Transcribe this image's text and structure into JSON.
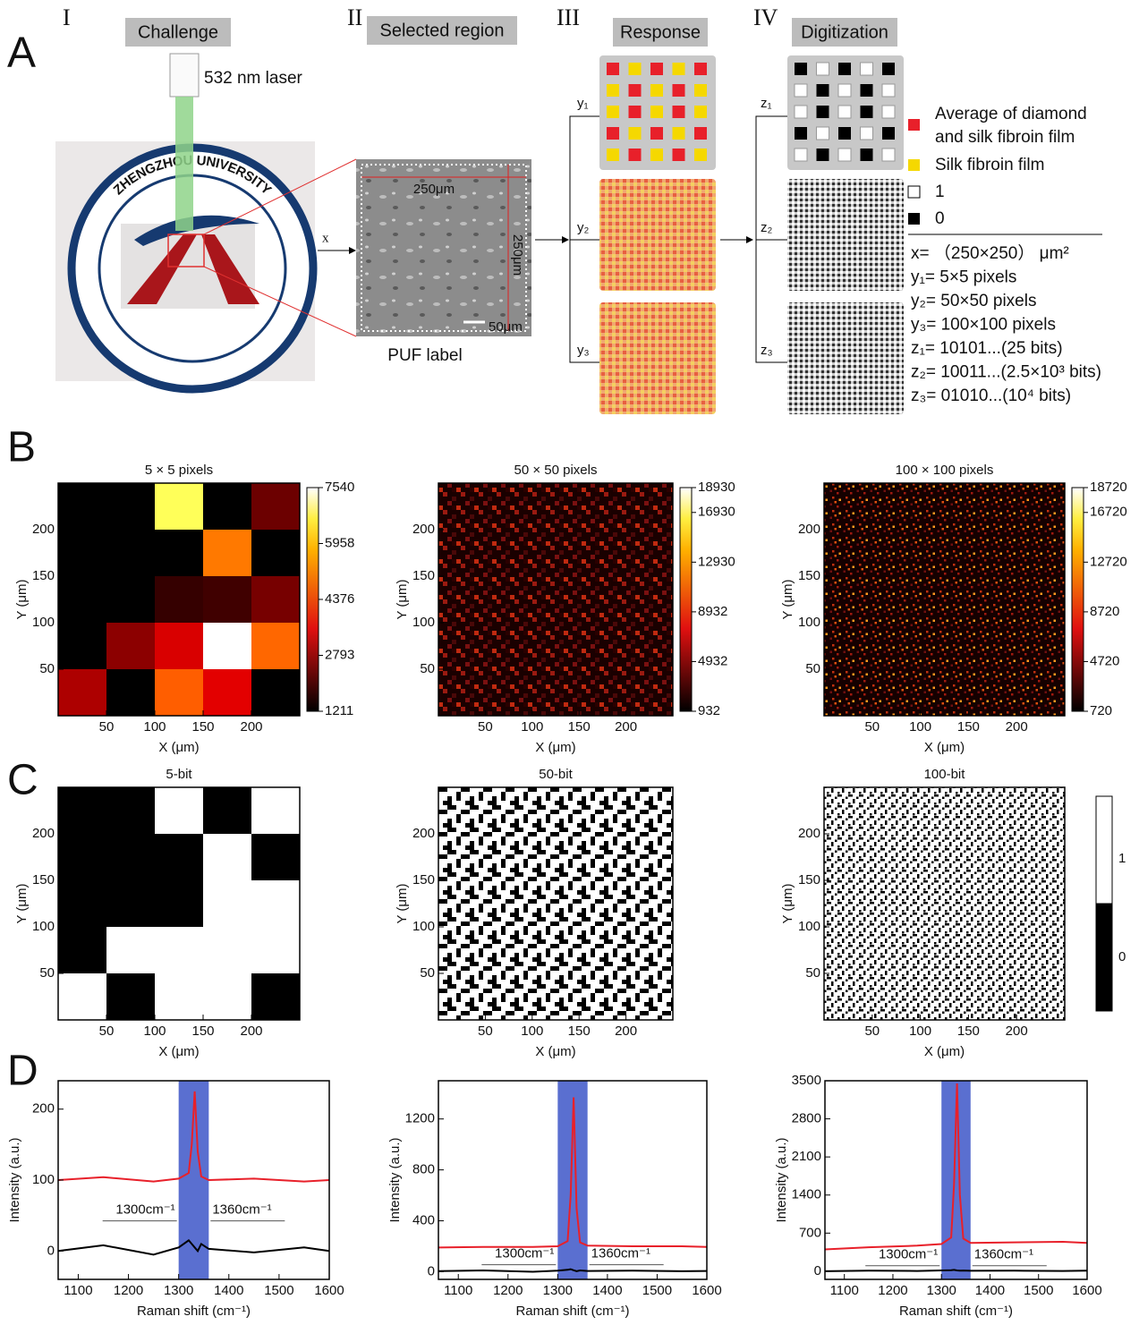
{
  "figure": {
    "panel_labels": [
      "A",
      "B",
      "C",
      "D"
    ],
    "panel_a": {
      "steps": [
        "I",
        "II",
        "III",
        "IV"
      ],
      "step_titles": [
        "Challenge",
        "Selected region",
        "Response",
        "Digitization"
      ],
      "laser": "532 nm laser",
      "logo_text": "ZHENGZHOU UNIVERSITY",
      "sem_width": "250μm",
      "sem_height": "250μm",
      "scale_bar": "50μm",
      "sem_caption": "PUF label",
      "input": "x",
      "responses": [
        "y₁",
        "y₂",
        "y₃"
      ],
      "digits": [
        "z₁",
        "z₂",
        "z₃"
      ],
      "legend": [
        "Average of diamond",
        "and silk fibroin film",
        "Silk fibroin film",
        "1",
        "0"
      ],
      "definitions": [
        "x= （250×250） μm²",
        "y₁= 5×5 pixels",
        "y₂= 50×50 pixels",
        "y₃= 100×100 pixels",
        "z₁= 10101...(25 bits)",
        "z₂= 10011...(2.5×10³ bits)",
        "z₃= 01010...(10⁴ bits)"
      ]
    },
    "binary_colorbar_ticks": [
      1,
      0
    ]
  },
  "chart_data": [
    {
      "type": "heatmap",
      "title": "5 × 5 pixels",
      "x_label": "X (μm)",
      "y_label": "Y (μm)",
      "xlim": [
        0,
        250
      ],
      "ylim": [
        0,
        250
      ],
      "xticks": [
        50,
        100,
        150,
        200
      ],
      "yticks": [
        50,
        100,
        150,
        200
      ],
      "values": [
        [
          1211,
          1211,
          6800,
          1211,
          2200
        ],
        [
          1211,
          1211,
          1211,
          4900,
          1211
        ],
        [
          1211,
          1211,
          1700,
          1800,
          2300
        ],
        [
          1211,
          2500,
          3200,
          7540,
          4700
        ],
        [
          2800,
          1211,
          4600,
          3300,
          1211
        ]
      ],
      "colorbar_lim": [
        1211,
        7540
      ],
      "colorbar_ticks": [
        1211,
        2793,
        4376,
        5958,
        7540
      ]
    },
    {
      "type": "heatmap-image",
      "title": "50 × 50 pixels",
      "x_label": "X (μm)",
      "y_label": "Y (μm)",
      "xlim": [
        0,
        250
      ],
      "ylim": [
        0,
        250
      ],
      "xticks": [
        50,
        100,
        150,
        200
      ],
      "yticks": [
        50,
        100,
        150,
        200
      ],
      "colorbar_lim": [
        932,
        18930
      ],
      "colorbar_ticks": [
        932,
        4932,
        8932,
        12930,
        16930,
        18930
      ]
    },
    {
      "type": "heatmap-image",
      "title": "100 × 100 pixels",
      "x_label": "X (μm)",
      "y_label": "Y (μm)",
      "xlim": [
        0,
        250
      ],
      "ylim": [
        0,
        250
      ],
      "xticks": [
        50,
        100,
        150,
        200
      ],
      "yticks": [
        50,
        100,
        150,
        200
      ],
      "colorbar_lim": [
        720,
        18720
      ],
      "colorbar_ticks": [
        720,
        4720,
        8720,
        12720,
        16720,
        18720
      ]
    },
    {
      "type": "binary",
      "title": "5-bit",
      "x_label": "X (μm)",
      "y_label": "Y (μm)",
      "xlim": [
        0,
        250
      ],
      "ylim": [
        0,
        250
      ],
      "xticks": [
        50,
        100,
        150,
        200
      ],
      "yticks": [
        50,
        100,
        150,
        200
      ],
      "values": [
        [
          0,
          0,
          1,
          0,
          1
        ],
        [
          0,
          0,
          0,
          1,
          0
        ],
        [
          0,
          0,
          0,
          1,
          1
        ],
        [
          0,
          1,
          1,
          1,
          1
        ],
        [
          1,
          0,
          1,
          1,
          0
        ]
      ]
    },
    {
      "type": "binary-image",
      "title": "50-bit",
      "x_label": "X (μm)",
      "y_label": "Y (μm)",
      "xlim": [
        0,
        250
      ],
      "ylim": [
        0,
        250
      ],
      "xticks": [
        50,
        100,
        150,
        200
      ],
      "yticks": [
        50,
        100,
        150,
        200
      ]
    },
    {
      "type": "binary-image",
      "title": "100-bit",
      "x_label": "X (μm)",
      "y_label": "Y (μm)",
      "xlim": [
        0,
        250
      ],
      "ylim": [
        0,
        250
      ],
      "xticks": [
        50,
        100,
        150,
        200
      ],
      "yticks": [
        50,
        100,
        150,
        200
      ]
    },
    {
      "type": "line",
      "x_label": "Raman shift (cm⁻¹)",
      "y_label": "Intensity (a.u.)",
      "xlim": [
        1060,
        1600
      ],
      "ylim": [
        -40,
        240
      ],
      "xticks": [
        1100,
        1200,
        1300,
        1400,
        1500,
        1600
      ],
      "yticks": [
        0,
        100,
        200
      ],
      "band": [
        1300,
        1360
      ],
      "band_color": "#5a6fd0",
      "annotations": [
        "1300cm⁻¹",
        "1360cm⁻¹"
      ],
      "x": [
        1060,
        1150,
        1250,
        1300,
        1320,
        1326,
        1332,
        1338,
        1345,
        1360,
        1450,
        1550,
        1600
      ],
      "series": [
        {
          "color": "#e8202a",
          "values": [
            100,
            104,
            98,
            102,
            110,
            150,
            225,
            140,
            105,
            100,
            102,
            98,
            100
          ]
        },
        {
          "color": "#000000",
          "values": [
            0,
            8,
            -5,
            5,
            15,
            10,
            5,
            0,
            10,
            3,
            -2,
            5,
            0
          ]
        }
      ]
    },
    {
      "type": "line",
      "x_label": "Raman shift (cm⁻¹)",
      "y_label": "Intensity (a.u.)",
      "xlim": [
        1060,
        1600
      ],
      "ylim": [
        -60,
        1500
      ],
      "xticks": [
        1100,
        1200,
        1300,
        1400,
        1500,
        1600
      ],
      "yticks": [
        0,
        400,
        800,
        1200
      ],
      "band": [
        1300,
        1360
      ],
      "band_color": "#5a6fd0",
      "annotations": [
        "1300cm⁻¹",
        "1360cm⁻¹"
      ],
      "x": [
        1060,
        1150,
        1250,
        1300,
        1320,
        1326,
        1332,
        1338,
        1345,
        1360,
        1450,
        1550,
        1600
      ],
      "series": [
        {
          "color": "#e8202a",
          "values": [
            190,
            195,
            195,
            200,
            240,
            600,
            1370,
            500,
            230,
            205,
            200,
            200,
            195
          ]
        },
        {
          "color": "#000000",
          "values": [
            5,
            10,
            0,
            8,
            15,
            20,
            12,
            5,
            10,
            6,
            8,
            4,
            6
          ]
        }
      ]
    },
    {
      "type": "line",
      "x_label": "Raman shift (cm⁻¹)",
      "y_label": "Intensity (a.u.)",
      "xlim": [
        1060,
        1600
      ],
      "ylim": [
        -150,
        3500
      ],
      "xticks": [
        1100,
        1200,
        1300,
        1400,
        1500,
        1600
      ],
      "yticks": [
        0,
        700,
        1400,
        2100,
        2800,
        3500
      ],
      "band": [
        1300,
        1360
      ],
      "band_color": "#5a6fd0",
      "annotations": [
        "1300cm⁻¹",
        "1360cm⁻¹"
      ],
      "x": [
        1060,
        1150,
        1250,
        1300,
        1320,
        1326,
        1332,
        1338,
        1345,
        1360,
        1450,
        1550,
        1600
      ],
      "series": [
        {
          "color": "#e8202a",
          "values": [
            400,
            440,
            470,
            500,
            620,
            1600,
            3450,
            1400,
            600,
            520,
            530,
            540,
            520
          ]
        },
        {
          "color": "#000000",
          "values": [
            0,
            10,
            5,
            15,
            20,
            25,
            15,
            10,
            12,
            8,
            10,
            5,
            10
          ]
        }
      ]
    }
  ]
}
